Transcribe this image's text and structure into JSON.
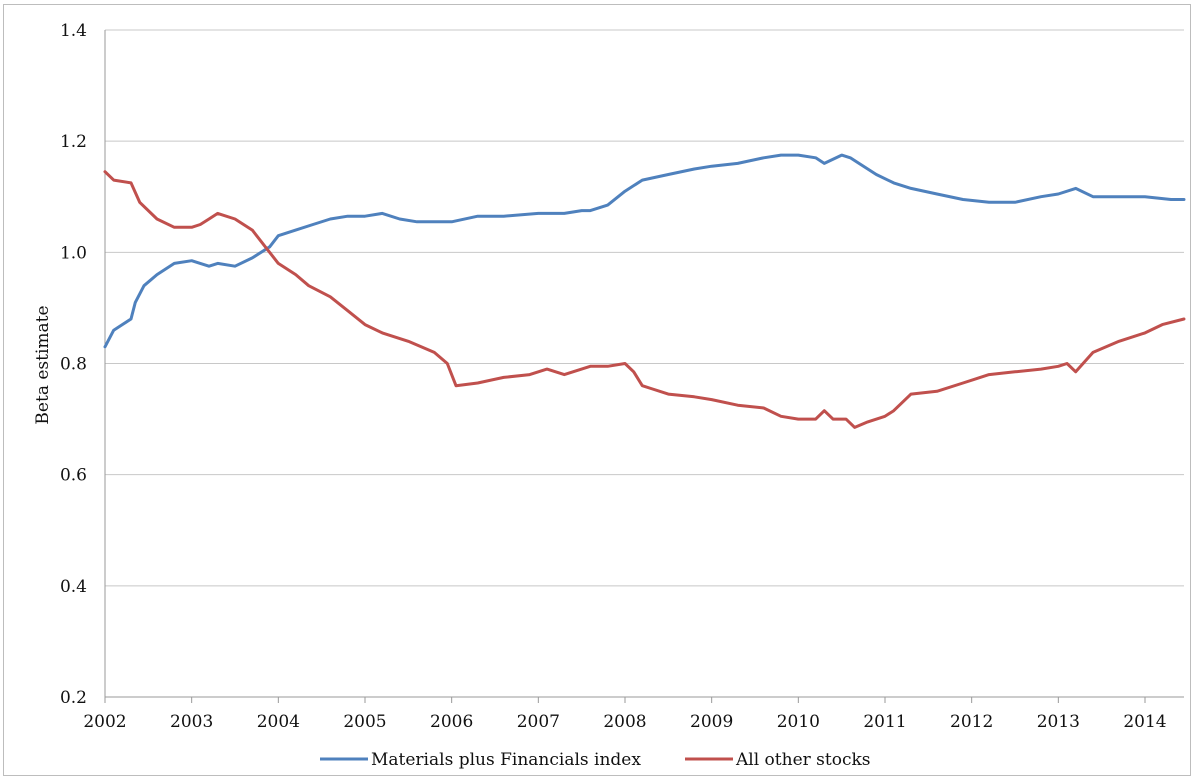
{
  "chart_data": {
    "type": "line",
    "title": "",
    "xlabel": "",
    "ylabel": "Beta estimate",
    "xlim": [
      2002,
      2014.45
    ],
    "ylim": [
      0.2,
      1.4
    ],
    "y_ticks": [
      "0.2",
      "0.4",
      "0.6",
      "0.8",
      "1.0",
      "1.2",
      "1.4"
    ],
    "x_ticks": [
      "2002",
      "2003",
      "2004",
      "2005",
      "2006",
      "2007",
      "2008",
      "2009",
      "2010",
      "2011",
      "2012",
      "2013",
      "2014"
    ],
    "grid": "horizontal",
    "legend_position": "bottom",
    "series": [
      {
        "name": "Materials plus Financials index",
        "color": "#4f81bd",
        "x": [
          2002.0,
          2002.1,
          2002.2,
          2002.3,
          2002.35,
          2002.45,
          2002.6,
          2002.8,
          2003.0,
          2003.1,
          2003.2,
          2003.3,
          2003.5,
          2003.7,
          2003.9,
          2004.0,
          2004.2,
          2004.4,
          2004.6,
          2004.8,
          2005.0,
          2005.2,
          2005.4,
          2005.6,
          2005.8,
          2006.0,
          2006.3,
          2006.6,
          2007.0,
          2007.3,
          2007.5,
          2007.6,
          2007.8,
          2008.0,
          2008.2,
          2008.5,
          2008.8,
          2009.0,
          2009.3,
          2009.6,
          2009.8,
          2010.0,
          2010.2,
          2010.3,
          2010.5,
          2010.6,
          2010.7,
          2010.9,
          2011.1,
          2011.3,
          2011.6,
          2011.9,
          2012.2,
          2012.5,
          2012.8,
          2013.0,
          2013.2,
          2013.4,
          2013.7,
          2014.0,
          2014.3,
          2014.45
        ],
        "y": [
          0.83,
          0.86,
          0.87,
          0.88,
          0.91,
          0.94,
          0.96,
          0.98,
          0.985,
          0.98,
          0.975,
          0.98,
          0.975,
          0.99,
          1.01,
          1.03,
          1.04,
          1.05,
          1.06,
          1.065,
          1.065,
          1.07,
          1.06,
          1.055,
          1.055,
          1.055,
          1.065,
          1.065,
          1.07,
          1.07,
          1.075,
          1.075,
          1.085,
          1.11,
          1.13,
          1.14,
          1.15,
          1.155,
          1.16,
          1.17,
          1.175,
          1.175,
          1.17,
          1.16,
          1.175,
          1.17,
          1.16,
          1.14,
          1.125,
          1.115,
          1.105,
          1.095,
          1.09,
          1.09,
          1.1,
          1.105,
          1.115,
          1.1,
          1.1,
          1.1,
          1.095,
          1.095
        ]
      },
      {
        "name": "All other stocks",
        "color": "#c0504d",
        "x": [
          2002.0,
          2002.1,
          2002.3,
          2002.4,
          2002.6,
          2002.8,
          2003.0,
          2003.1,
          2003.2,
          2003.3,
          2003.5,
          2003.7,
          2003.85,
          2004.0,
          2004.2,
          2004.35,
          2004.6,
          2004.8,
          2005.0,
          2005.2,
          2005.5,
          2005.8,
          2005.95,
          2006.05,
          2006.3,
          2006.6,
          2006.9,
          2007.1,
          2007.3,
          2007.6,
          2007.8,
          2008.0,
          2008.1,
          2008.2,
          2008.3,
          2008.5,
          2008.8,
          2009.0,
          2009.3,
          2009.6,
          2009.8,
          2010.0,
          2010.2,
          2010.3,
          2010.4,
          2010.55,
          2010.65,
          2010.8,
          2011.0,
          2011.1,
          2011.3,
          2011.6,
          2011.9,
          2012.2,
          2012.5,
          2012.8,
          2013.0,
          2013.1,
          2013.2,
          2013.4,
          2013.7,
          2014.0,
          2014.2,
          2014.45
        ],
        "y": [
          1.145,
          1.13,
          1.125,
          1.09,
          1.06,
          1.045,
          1.045,
          1.05,
          1.06,
          1.07,
          1.06,
          1.04,
          1.01,
          0.98,
          0.96,
          0.94,
          0.92,
          0.895,
          0.87,
          0.855,
          0.84,
          0.82,
          0.8,
          0.76,
          0.765,
          0.775,
          0.78,
          0.79,
          0.78,
          0.795,
          0.795,
          0.8,
          0.785,
          0.76,
          0.755,
          0.745,
          0.74,
          0.735,
          0.725,
          0.72,
          0.705,
          0.7,
          0.7,
          0.715,
          0.7,
          0.7,
          0.685,
          0.695,
          0.705,
          0.715,
          0.745,
          0.75,
          0.765,
          0.78,
          0.785,
          0.79,
          0.795,
          0.8,
          0.785,
          0.82,
          0.84,
          0.855,
          0.87,
          0.88
        ]
      }
    ]
  }
}
